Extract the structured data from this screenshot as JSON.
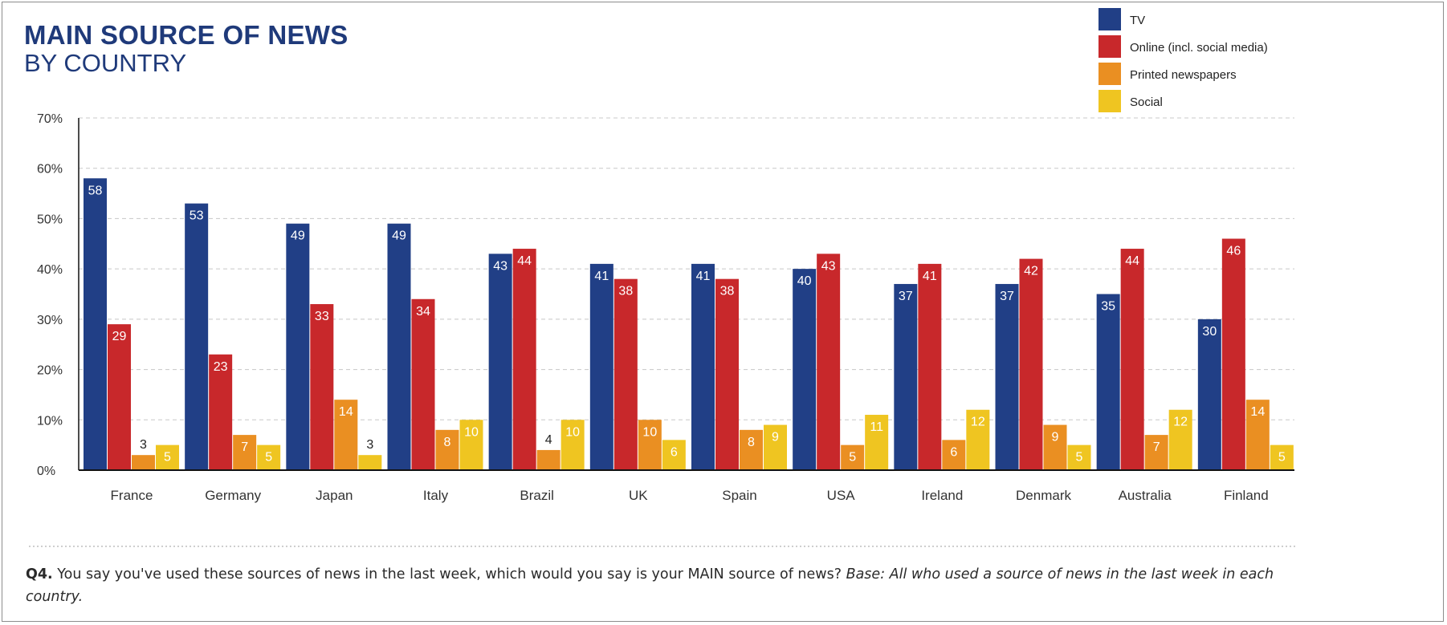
{
  "header": {
    "title": "MAIN SOURCE OF NEWS",
    "subtitle": "BY COUNTRY"
  },
  "footnote": {
    "q_label": "Q4.",
    "question": " You say you've used these sources of news in the last week, which would you say is your MAIN source of news? ",
    "base": "Base: All who used a source of news in the last week in each country."
  },
  "chart_data": {
    "type": "bar",
    "title": "MAIN SOURCE OF NEWS",
    "subtitle": "BY COUNTRY",
    "xlabel": "",
    "ylabel": "",
    "ylim": [
      0,
      70
    ],
    "yticks": [
      "0%",
      "10%",
      "20%",
      "30%",
      "40%",
      "50%",
      "60%",
      "70%"
    ],
    "grid": true,
    "legend_position": "top-right",
    "categories": [
      "France",
      "Germany",
      "Japan",
      "Italy",
      "Brazil",
      "UK",
      "Spain",
      "USA",
      "Ireland",
      "Denmark",
      "Australia",
      "Finland"
    ],
    "series": [
      {
        "name": "TV",
        "color": "#213f86",
        "values": [
          58,
          53,
          49,
          49,
          43,
          41,
          41,
          40,
          37,
          37,
          35,
          30
        ]
      },
      {
        "name": "Online (incl. social media)",
        "color": "#c8282b",
        "values": [
          29,
          23,
          33,
          34,
          44,
          38,
          38,
          43,
          41,
          42,
          44,
          46
        ]
      },
      {
        "name": "Printed newspapers",
        "color": "#ea8f22",
        "values": [
          3,
          7,
          14,
          8,
          4,
          10,
          8,
          5,
          6,
          9,
          7,
          14
        ]
      },
      {
        "name": "Social",
        "color": "#efc521",
        "values": [
          5,
          5,
          3,
          10,
          10,
          6,
          9,
          11,
          12,
          5,
          12,
          5
        ]
      }
    ]
  }
}
